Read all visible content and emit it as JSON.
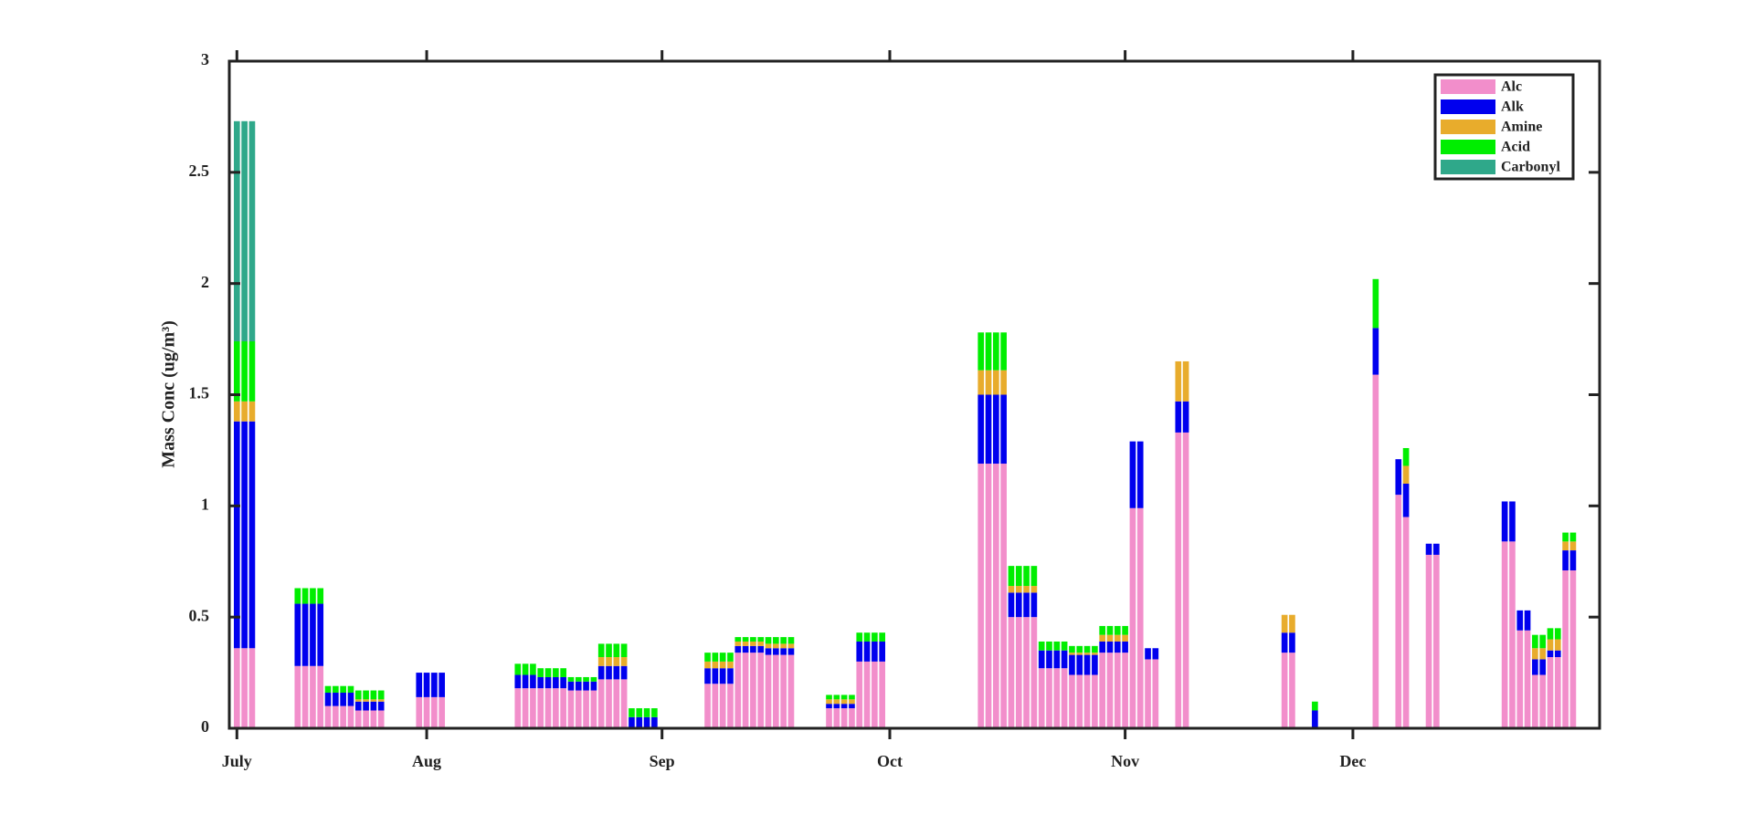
{
  "chart_data": {
    "type": "stacked-bar",
    "ylabel": "Mass Conc (ug/m³)",
    "xlim": [
      5,
      185.5
    ],
    "ylim": [
      0,
      3
    ],
    "yticks": [
      0,
      {
        "value": 0.5,
        "label": "0.5"
      },
      1,
      {
        "value": 1.5,
        "label": "1.5"
      },
      2,
      {
        "value": 2.5,
        "label": "2.5"
      },
      3
    ],
    "xticks": [
      {
        "value": 6,
        "label": "July"
      },
      {
        "value": 31,
        "label": "Aug"
      },
      {
        "value": 62,
        "label": "Sep"
      },
      {
        "value": 92,
        "label": "Oct"
      },
      {
        "value": 123,
        "label": "Nov"
      },
      {
        "value": 153,
        "label": "Dec"
      }
    ],
    "legend": "top-right",
    "x": [
      6,
      7,
      8,
      14,
      15,
      16,
      17,
      18,
      19,
      20,
      21,
      22,
      23,
      24,
      25,
      30,
      31,
      32,
      33,
      43,
      44,
      45,
      46,
      47,
      48,
      49,
      50,
      51,
      52,
      53,
      54,
      55,
      56,
      57,
      58,
      59,
      60,
      61,
      68,
      69,
      70,
      71,
      72,
      73,
      74,
      75,
      76,
      77,
      78,
      79,
      84,
      85,
      86,
      87,
      88,
      89,
      90,
      91,
      104,
      105,
      106,
      107,
      108,
      109,
      110,
      111,
      112,
      113,
      114,
      115,
      116,
      117,
      118,
      119,
      120,
      121,
      122,
      123,
      124,
      125,
      126,
      127,
      130,
      131,
      144,
      145,
      148,
      156,
      159,
      160,
      163,
      164,
      173,
      174,
      175,
      176,
      177,
      178,
      179,
      180,
      181,
      182
    ],
    "series": [
      {
        "name": "Alc",
        "color": "#f28ecb",
        "values": [
          0.36,
          0.36,
          0.36,
          0.28,
          0.28,
          0.28,
          0.28,
          0.1,
          0.1,
          0.1,
          0.1,
          0.08,
          0.08,
          0.08,
          0.08,
          0.14,
          0.14,
          0.14,
          0.14,
          0.18,
          0.18,
          0.18,
          0.18,
          0.18,
          0.18,
          0.18,
          0.17,
          0.17,
          0.17,
          0.17,
          0.22,
          0.22,
          0.22,
          0.22,
          0,
          0,
          0,
          0,
          0.2,
          0.2,
          0.2,
          0.2,
          0.34,
          0.34,
          0.34,
          0.34,
          0.33,
          0.33,
          0.33,
          0.33,
          0.09,
          0.09,
          0.09,
          0.09,
          0.3,
          0.3,
          0.3,
          0.3,
          1.19,
          1.19,
          1.19,
          1.19,
          0.5,
          0.5,
          0.5,
          0.5,
          0.27,
          0.27,
          0.27,
          0.27,
          0.24,
          0.24,
          0.24,
          0.24,
          0.34,
          0.34,
          0.34,
          0.34,
          0.99,
          0.99,
          0.31,
          0.31,
          1.33,
          1.33,
          0.34,
          0.34,
          0,
          1.59,
          1.05,
          0.95,
          0.78,
          0.78,
          0.84,
          0.84,
          0.44,
          0.44,
          0.24,
          0.24,
          0.32,
          0.32,
          0.71,
          0.71
        ]
      },
      {
        "name": "Alk",
        "color": "#0000ee",
        "values": [
          1.02,
          1.02,
          1.02,
          0.28,
          0.28,
          0.28,
          0.28,
          0.06,
          0.06,
          0.06,
          0.06,
          0.04,
          0.04,
          0.04,
          0.04,
          0.11,
          0.11,
          0.11,
          0.11,
          0.06,
          0.06,
          0.06,
          0.05,
          0.05,
          0.05,
          0.05,
          0.04,
          0.04,
          0.04,
          0.04,
          0.06,
          0.06,
          0.06,
          0.06,
          0.05,
          0.05,
          0.05,
          0.05,
          0.07,
          0.07,
          0.07,
          0.07,
          0.03,
          0.03,
          0.03,
          0.03,
          0.03,
          0.03,
          0.03,
          0.03,
          0.02,
          0.02,
          0.02,
          0.02,
          0.09,
          0.09,
          0.09,
          0.09,
          0.31,
          0.31,
          0.31,
          0.31,
          0.11,
          0.11,
          0.11,
          0.11,
          0.08,
          0.08,
          0.08,
          0.08,
          0.09,
          0.09,
          0.09,
          0.09,
          0.05,
          0.05,
          0.05,
          0.05,
          0.3,
          0.3,
          0.05,
          0.05,
          0.14,
          0.14,
          0.09,
          0.09,
          0.08,
          0.21,
          0.16,
          0.15,
          0.05,
          0.05,
          0.18,
          0.18,
          0.09,
          0.09,
          0.07,
          0.07,
          0.03,
          0.03,
          0.09,
          0.09
        ]
      },
      {
        "name": "Amine",
        "color": "#e8ac2c",
        "values": [
          0.09,
          0.09,
          0.09,
          0,
          0,
          0,
          0,
          0,
          0,
          0,
          0,
          0.01,
          0.01,
          0.01,
          0.01,
          0,
          0,
          0,
          0,
          0,
          0,
          0,
          0,
          0,
          0,
          0,
          0,
          0,
          0,
          0,
          0.04,
          0.04,
          0.04,
          0.04,
          0,
          0,
          0,
          0,
          0.03,
          0.03,
          0.03,
          0.03,
          0.02,
          0.02,
          0.02,
          0.02,
          0.02,
          0.02,
          0.02,
          0.02,
          0.02,
          0.02,
          0.02,
          0.02,
          0,
          0,
          0,
          0,
          0.11,
          0.11,
          0.11,
          0.11,
          0.03,
          0.03,
          0.03,
          0.03,
          0,
          0,
          0,
          0,
          0.01,
          0.01,
          0.01,
          0.01,
          0.03,
          0.03,
          0.03,
          0.03,
          0,
          0,
          0,
          0,
          0.18,
          0.18,
          0.08,
          0.08,
          0,
          0,
          0,
          0.08,
          0,
          0,
          0,
          0,
          0,
          0,
          0.05,
          0.05,
          0.05,
          0.05,
          0.04,
          0.04
        ]
      },
      {
        "name": "Acid",
        "color": "#00ee00",
        "values": [
          0.27,
          0.27,
          0.27,
          0.07,
          0.07,
          0.07,
          0.07,
          0.03,
          0.03,
          0.03,
          0.03,
          0.04,
          0.04,
          0.04,
          0.04,
          0,
          0,
          0,
          0,
          0.05,
          0.05,
          0.05,
          0.04,
          0.04,
          0.04,
          0.04,
          0.02,
          0.02,
          0.02,
          0.02,
          0.06,
          0.06,
          0.06,
          0.06,
          0.04,
          0.04,
          0.04,
          0.04,
          0.04,
          0.04,
          0.04,
          0.04,
          0.02,
          0.02,
          0.02,
          0.02,
          0.03,
          0.03,
          0.03,
          0.03,
          0.02,
          0.02,
          0.02,
          0.02,
          0.04,
          0.04,
          0.04,
          0.04,
          0.17,
          0.17,
          0.17,
          0.17,
          0.09,
          0.09,
          0.09,
          0.09,
          0.04,
          0.04,
          0.04,
          0.04,
          0.03,
          0.03,
          0.03,
          0.03,
          0.04,
          0.04,
          0.04,
          0.04,
          0,
          0,
          0,
          0,
          0,
          0,
          0,
          0,
          0.04,
          0.22,
          0,
          0.08,
          0,
          0,
          0,
          0,
          0,
          0,
          0.06,
          0.06,
          0.05,
          0.05,
          0.04,
          0.04
        ]
      },
      {
        "name": "Carbonyl",
        "color": "#2fa88a",
        "values": [
          0.99,
          0.99,
          0.99,
          0,
          0,
          0,
          0,
          0,
          0,
          0,
          0,
          0,
          0,
          0,
          0,
          0,
          0,
          0,
          0,
          0,
          0,
          0,
          0,
          0,
          0,
          0,
          0,
          0,
          0,
          0,
          0,
          0,
          0,
          0,
          0,
          0,
          0,
          0,
          0,
          0,
          0,
          0,
          0,
          0,
          0,
          0,
          0,
          0,
          0,
          0,
          0,
          0,
          0,
          0,
          0,
          0,
          0,
          0,
          0,
          0,
          0,
          0,
          0,
          0,
          0,
          0,
          0,
          0,
          0,
          0,
          0,
          0,
          0,
          0,
          0,
          0,
          0,
          0,
          0,
          0,
          0,
          0,
          0,
          0,
          0,
          0,
          0,
          0,
          0,
          0,
          0,
          0,
          0,
          0,
          0,
          0,
          0,
          0,
          0,
          0,
          0,
          0
        ]
      }
    ]
  }
}
